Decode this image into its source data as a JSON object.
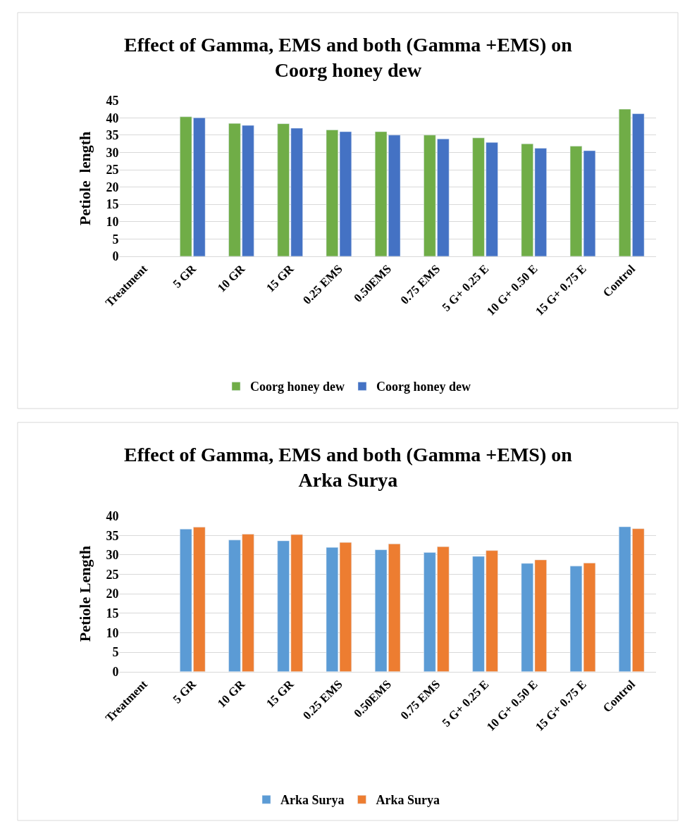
{
  "chart_data": [
    {
      "type": "bar",
      "title": "Effect of Gamma, EMS and both (Gamma +EMS) on Coorg honey dew",
      "ylabel": "Petiole  length",
      "categories": [
        "Treatment",
        "5 GR",
        "10 GR",
        "15 GR",
        "0.25 EMS",
        "0.50EMS",
        "0.75 EMS",
        "5 G+ 0.25 E",
        "10 G+ 0.50 E",
        "15 G+ 0.75 E",
        "Control"
      ],
      "series": [
        {
          "name": "Coorg honey dew",
          "color": "#70ad47",
          "values": [
            null,
            40.3,
            38.4,
            38.3,
            36.5,
            36.0,
            35.0,
            34.2,
            32.5,
            31.8,
            42.5
          ]
        },
        {
          "name": "Coorg honey dew",
          "color": "#4472c4",
          "values": [
            null,
            40.0,
            37.8,
            37.0,
            36.0,
            35.0,
            33.9,
            32.9,
            31.2,
            30.5,
            41.2
          ]
        }
      ],
      "ylim": [
        0,
        45
      ],
      "yticks": [
        0,
        5,
        10,
        15,
        20,
        25,
        30,
        35,
        40,
        45
      ],
      "grid": "y",
      "legend": "bottom"
    },
    {
      "type": "bar",
      "title": "Effect of Gamma, EMS and both (Gamma +EMS) on Arka Surya",
      "ylabel": "Petiole Length",
      "categories": [
        "Treatment",
        "5 GR",
        "10 GR",
        "15 GR",
        "0.25 EMS",
        "0.50EMS",
        "0.75 EMS",
        "5 G+ 0.25 E",
        "10 G+ 0.50 E",
        "15 G+ 0.75 E",
        "Control"
      ],
      "series": [
        {
          "name": "Arka Surya",
          "color": "#5b9bd5",
          "values": [
            null,
            36.6,
            33.8,
            33.6,
            31.9,
            31.3,
            30.6,
            29.6,
            27.8,
            27.1,
            37.2
          ]
        },
        {
          "name": "Arka Surya",
          "color": "#ed7d31",
          "values": [
            null,
            37.1,
            35.3,
            35.2,
            33.2,
            32.8,
            32.1,
            31.1,
            28.7,
            27.9,
            36.7
          ]
        }
      ],
      "ylim": [
        0,
        40
      ],
      "yticks": [
        0,
        5,
        10,
        15,
        20,
        25,
        30,
        35,
        40
      ],
      "grid": "y",
      "legend": "bottom"
    }
  ]
}
